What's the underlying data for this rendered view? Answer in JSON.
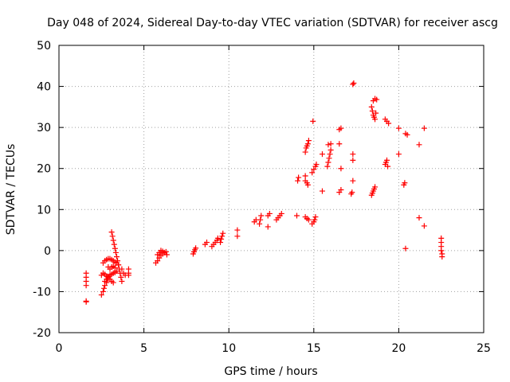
{
  "chart_data": {
    "type": "scatter",
    "title": "Day 048 of 2024, Sidereal Day-to-day VTEC variation (SDTVAR) for receiver ascg",
    "xlabel": "GPS time / hours",
    "ylabel": "SDTVAR / TECUs",
    "xlim": [
      0,
      25
    ],
    "ylim": [
      -20,
      50
    ],
    "x_ticks": [
      0,
      5,
      10,
      15,
      20,
      25
    ],
    "x_tick_labels": [
      "0",
      "5",
      "10",
      "15",
      "20",
      "25"
    ],
    "y_ticks": [
      -20,
      -10,
      0,
      10,
      20,
      30,
      40,
      50
    ],
    "y_tick_labels": [
      "-20",
      "-10",
      "0",
      "10",
      "20",
      "30",
      "40",
      "50"
    ],
    "grid": true,
    "marker": "plus",
    "color": "#ff0000",
    "series": [
      {
        "name": "SDTVAR",
        "points": [
          [
            1.6,
            -12.5
          ],
          [
            1.6,
            -12.3
          ],
          [
            1.6,
            -5.5
          ],
          [
            1.6,
            -6.5
          ],
          [
            1.6,
            -7.5
          ],
          [
            1.6,
            -8.5
          ],
          [
            2.5,
            -10.8
          ],
          [
            2.6,
            -10.0
          ],
          [
            2.65,
            -9.2
          ],
          [
            2.7,
            -8.5
          ],
          [
            2.8,
            -7.8
          ],
          [
            2.85,
            -7.0
          ],
          [
            2.9,
            -6.3
          ],
          [
            2.5,
            -6.0
          ],
          [
            2.6,
            -5.5
          ],
          [
            2.7,
            -5.8
          ],
          [
            2.8,
            -6.2
          ],
          [
            2.9,
            -6.5
          ],
          [
            3.0,
            -6.0
          ],
          [
            3.1,
            -5.8
          ],
          [
            3.2,
            -5.5
          ],
          [
            3.3,
            -5.3
          ],
          [
            3.4,
            -5.0
          ],
          [
            2.6,
            -3.0
          ],
          [
            2.7,
            -2.5
          ],
          [
            2.8,
            -2.2
          ],
          [
            2.9,
            -2.0
          ],
          [
            3.0,
            -2.0
          ],
          [
            3.1,
            -2.2
          ],
          [
            3.2,
            -2.5
          ],
          [
            3.3,
            -2.8
          ],
          [
            3.4,
            -3.0
          ],
          [
            3.5,
            -3.5
          ],
          [
            2.7,
            -7.5
          ],
          [
            2.8,
            -7.0
          ],
          [
            2.9,
            -6.8
          ],
          [
            3.0,
            -7.0
          ],
          [
            3.1,
            -7.5
          ],
          [
            3.2,
            -7.8
          ],
          [
            2.9,
            -4.0
          ],
          [
            3.0,
            -4.5
          ],
          [
            3.1,
            -4.0
          ],
          [
            3.2,
            -3.8
          ],
          [
            3.3,
            -4.2
          ],
          [
            3.1,
            4.5
          ],
          [
            3.15,
            3.5
          ],
          [
            3.2,
            2.5
          ],
          [
            3.25,
            1.5
          ],
          [
            3.3,
            0.5
          ],
          [
            3.35,
            -0.5
          ],
          [
            3.4,
            -1.5
          ],
          [
            3.45,
            -2.5
          ],
          [
            3.5,
            -3.5
          ],
          [
            3.55,
            -4.5
          ],
          [
            3.6,
            -5.5
          ],
          [
            3.65,
            -6.5
          ],
          [
            3.7,
            -7.5
          ],
          [
            3.7,
            -4.5
          ],
          [
            3.8,
            -5.5
          ],
          [
            3.9,
            -6.0
          ],
          [
            4.1,
            -4.5
          ],
          [
            4.1,
            -5.5
          ],
          [
            4.1,
            -6.0
          ],
          [
            5.7,
            -3.0
          ],
          [
            5.8,
            -2.5
          ],
          [
            5.9,
            -1.8
          ],
          [
            6.0,
            -1.2
          ],
          [
            6.1,
            -0.8
          ],
          [
            6.2,
            -0.5
          ],
          [
            6.3,
            -0.3
          ],
          [
            6.35,
            -1.0
          ],
          [
            5.8,
            -1.0
          ],
          [
            5.9,
            -0.5
          ],
          [
            6.0,
            0.0
          ],
          [
            6.1,
            -0.2
          ],
          [
            7.9,
            -0.8
          ],
          [
            7.95,
            -0.3
          ],
          [
            8.0,
            0.2
          ],
          [
            8.05,
            0.6
          ],
          [
            8.6,
            1.5
          ],
          [
            8.7,
            2.0
          ],
          [
            9.0,
            1.0
          ],
          [
            9.1,
            1.5
          ],
          [
            9.2,
            2.0
          ],
          [
            9.3,
            2.5
          ],
          [
            9.35,
            3.0
          ],
          [
            9.5,
            2.0
          ],
          [
            9.55,
            2.8
          ],
          [
            9.6,
            3.5
          ],
          [
            9.65,
            4.2
          ],
          [
            10.5,
            3.5
          ],
          [
            10.5,
            5.0
          ],
          [
            11.5,
            7.0
          ],
          [
            11.6,
            7.5
          ],
          [
            11.8,
            6.5
          ],
          [
            11.85,
            7.5
          ],
          [
            11.9,
            8.5
          ],
          [
            12.3,
            5.8
          ],
          [
            12.3,
            8.5
          ],
          [
            12.4,
            9.0
          ],
          [
            12.8,
            7.5
          ],
          [
            12.9,
            8.0
          ],
          [
            13.0,
            8.5
          ],
          [
            13.1,
            9.0
          ],
          [
            14.0,
            8.5
          ],
          [
            14.05,
            17.0
          ],
          [
            14.1,
            17.8
          ],
          [
            14.5,
            18.2
          ],
          [
            14.5,
            17.0
          ],
          [
            14.6,
            16.5
          ],
          [
            14.65,
            16.0
          ],
          [
            14.5,
            24.0
          ],
          [
            14.55,
            25.0
          ],
          [
            14.6,
            25.5
          ],
          [
            14.65,
            26.0
          ],
          [
            14.7,
            26.8
          ],
          [
            14.5,
            8.2
          ],
          [
            14.6,
            7.8
          ],
          [
            14.7,
            7.5
          ],
          [
            14.9,
            6.5
          ],
          [
            15.0,
            7.0
          ],
          [
            15.05,
            7.5
          ],
          [
            15.1,
            8.2
          ],
          [
            14.9,
            19.0
          ],
          [
            15.0,
            19.8
          ],
          [
            15.1,
            20.5
          ],
          [
            15.15,
            21.0
          ],
          [
            14.95,
            31.5
          ],
          [
            15.5,
            14.5
          ],
          [
            15.5,
            23.5
          ],
          [
            15.8,
            20.5
          ],
          [
            15.85,
            21.5
          ],
          [
            15.9,
            22.5
          ],
          [
            15.95,
            23.5
          ],
          [
            16.0,
            24.5
          ],
          [
            15.85,
            25.8
          ],
          [
            16.0,
            26.0
          ],
          [
            16.5,
            14.2
          ],
          [
            16.6,
            14.8
          ],
          [
            16.6,
            20.0
          ],
          [
            16.5,
            26.0
          ],
          [
            16.5,
            29.5
          ],
          [
            16.6,
            29.8
          ],
          [
            17.2,
            13.8
          ],
          [
            17.25,
            14.2
          ],
          [
            17.3,
            17.0
          ],
          [
            17.3,
            22.0
          ],
          [
            17.3,
            23.5
          ],
          [
            17.3,
            40.5
          ],
          [
            17.35,
            40.8
          ],
          [
            18.4,
            13.5
          ],
          [
            18.45,
            14.0
          ],
          [
            18.5,
            14.5
          ],
          [
            18.55,
            15.0
          ],
          [
            18.6,
            15.5
          ],
          [
            18.4,
            35.0
          ],
          [
            18.45,
            34.0
          ],
          [
            18.5,
            33.0
          ],
          [
            18.55,
            32.5
          ],
          [
            18.6,
            32.0
          ],
          [
            18.65,
            33.5
          ],
          [
            18.5,
            36.5
          ],
          [
            18.6,
            37.0
          ],
          [
            18.7,
            36.8
          ],
          [
            19.2,
            32.0
          ],
          [
            19.3,
            31.5
          ],
          [
            19.4,
            31.0
          ],
          [
            19.2,
            21.0
          ],
          [
            19.25,
            21.5
          ],
          [
            19.3,
            22.0
          ],
          [
            19.35,
            20.5
          ],
          [
            20.0,
            23.5
          ],
          [
            20.0,
            29.8
          ],
          [
            20.3,
            16.0
          ],
          [
            20.35,
            16.5
          ],
          [
            20.4,
            28.5
          ],
          [
            20.5,
            28.2
          ],
          [
            20.4,
            0.5
          ],
          [
            21.2,
            25.8
          ],
          [
            21.2,
            8.0
          ],
          [
            21.5,
            6.0
          ],
          [
            21.5,
            29.8
          ],
          [
            22.5,
            3.0
          ],
          [
            22.5,
            2.0
          ],
          [
            22.5,
            1.0
          ],
          [
            22.5,
            0.0
          ],
          [
            22.55,
            -0.8
          ],
          [
            22.55,
            -1.5
          ]
        ]
      }
    ]
  }
}
